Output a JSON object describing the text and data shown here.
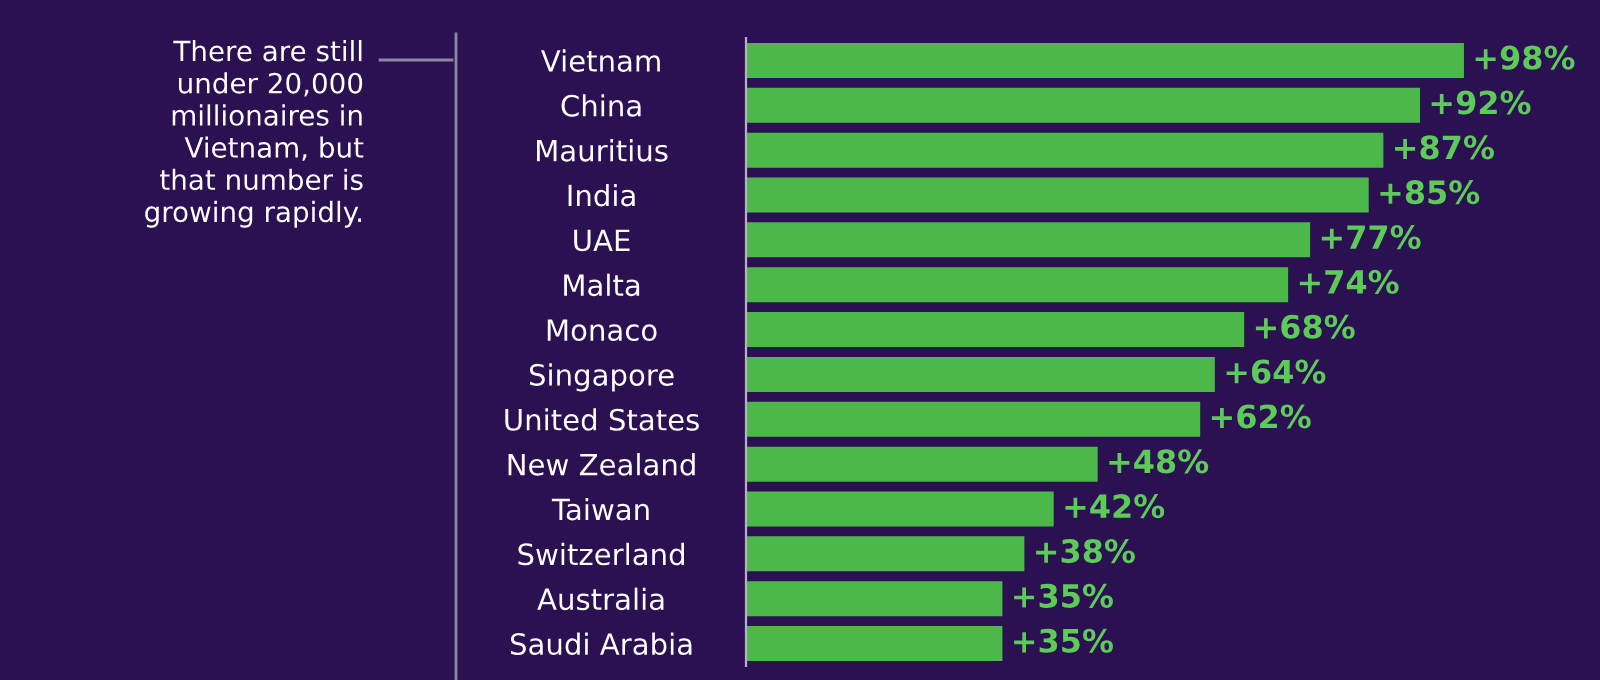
{
  "chart_data": {
    "type": "bar",
    "orientation": "horizontal",
    "categories": [
      "Vietnam",
      "China",
      "Mauritius",
      "India",
      "UAE",
      "Malta",
      "Monaco",
      "Singapore",
      "United States",
      "New Zealand",
      "Taiwan",
      "Switzerland",
      "Australia",
      "Saudi Arabia"
    ],
    "values": [
      98,
      92,
      87,
      85,
      77,
      74,
      68,
      64,
      62,
      48,
      42,
      38,
      35,
      35
    ],
    "value_labels": [
      "+98%",
      "+92%",
      "+87%",
      "+85%",
      "+77%",
      "+74%",
      "+68%",
      "+64%",
      "+62%",
      "+48%",
      "+42%",
      "+38%",
      "+35%",
      "+35%"
    ],
    "color": "#4cb84a",
    "annotations": [
      "There are still\nunder 20,000\nmillionaires in\nVietnam, but\nthat number is\ngrowing rapidly."
    ],
    "tick_labels": "y",
    "grid": false,
    "legend": false
  }
}
